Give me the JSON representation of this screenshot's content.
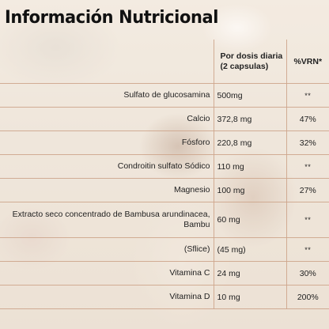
{
  "title": "Información Nutricional",
  "table": {
    "header": {
      "name": "",
      "dose_line1": "Por dosis diaria",
      "dose_line2": "(2 capsulas)",
      "vrn": "%VRN*"
    },
    "rows": [
      {
        "name": "Sulfato de glucosamina",
        "dose": "500mg",
        "vrn": "**"
      },
      {
        "name": "Calcio",
        "dose": "372,8 mg",
        "vrn": "47%"
      },
      {
        "name": "Fósforo",
        "dose": "220,8 mg",
        "vrn": "32%"
      },
      {
        "name": "Condroitin sulfato Sódico",
        "dose": "110 mg",
        "vrn": "**"
      },
      {
        "name": "Magnesio",
        "dose": "100 mg",
        "vrn": "27%"
      },
      {
        "name": "Extracto seco concentrado de Bambusa arundinacea, Bambu",
        "dose": "60 mg",
        "vrn": "**"
      },
      {
        "name": "(Sflice)",
        "dose": "(45 mg)",
        "vrn": "**"
      },
      {
        "name": "Vitamina C",
        "dose": "24 mg",
        "vrn": "30%"
      },
      {
        "name": "Vitamina D",
        "dose": "10 mg",
        "vrn": "200%"
      }
    ]
  }
}
